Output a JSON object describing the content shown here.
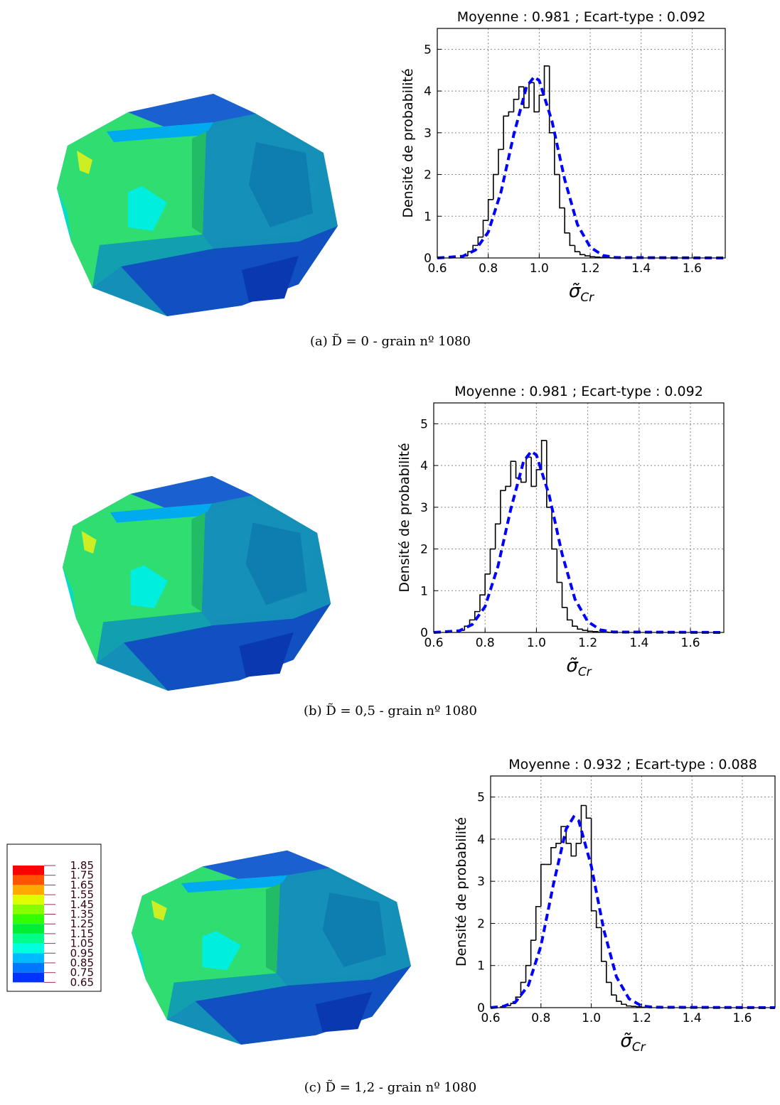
{
  "chart_data": [
    {
      "type": "histogram",
      "title": "Moyenne : 0.981 ; Ecart-type : 0.092",
      "ylabel": "Densité de probabilité",
      "xlabel": "σ̃",
      "xlabel_sub": "Cr",
      "bins": [
        0.7,
        0.72,
        0.74,
        0.76,
        0.78,
        0.8,
        0.82,
        0.84,
        0.86,
        0.88,
        0.9,
        0.92,
        0.94,
        0.96,
        0.98,
        1.0,
        1.02,
        1.04,
        1.06,
        1.08,
        1.1,
        1.12,
        1.14,
        1.16,
        1.18,
        1.2,
        1.22,
        1.24,
        1.26,
        1.28,
        1.3
      ],
      "values": [
        0.05,
        0.15,
        0.3,
        0.5,
        0.9,
        1.4,
        2.0,
        2.6,
        3.4,
        3.5,
        3.8,
        4.1,
        3.6,
        4.2,
        3.5,
        3.9,
        4.6,
        3.0,
        2.0,
        1.2,
        0.6,
        0.3,
        0.15,
        0.08,
        0.05,
        0.03,
        0.02,
        0.01,
        0.01,
        0
      ],
      "color": "#000000",
      "fit": {
        "color": "#0000ff",
        "x": [
          0.6,
          0.7,
          0.75,
          0.8,
          0.85,
          0.9,
          0.95,
          0.98,
          1.0,
          1.05,
          1.1,
          1.15,
          1.2,
          1.25,
          1.3,
          1.73
        ],
        "values": [
          0,
          0.04,
          0.19,
          0.62,
          1.58,
          2.95,
          4.1,
          4.34,
          4.25,
          3.28,
          1.88,
          0.8,
          0.26,
          0.06,
          0.01,
          0
        ]
      },
      "xlim": [
        0.6,
        1.73
      ],
      "ylim": [
        0,
        5.5
      ],
      "xticks": [
        0.6,
        0.8,
        {
          "value": 1,
          "label": "1.0"
        },
        1.2,
        1.4,
        1.6
      ],
      "yticks": [
        0,
        1,
        2,
        3,
        4,
        5
      ],
      "grid": true
    },
    {
      "type": "histogram",
      "title": "Moyenne : 0.981 ; Ecart-type : 0.092",
      "ylabel": "Densité de probabilité",
      "xlabel": "σ̃",
      "xlabel_sub": "Cr",
      "bins": [
        0.7,
        0.72,
        0.74,
        0.76,
        0.78,
        0.8,
        0.82,
        0.84,
        0.86,
        0.88,
        0.9,
        0.92,
        0.94,
        0.96,
        0.98,
        1.0,
        1.02,
        1.04,
        1.06,
        1.08,
        1.1,
        1.12,
        1.14,
        1.16,
        1.18,
        1.2,
        1.22,
        1.24,
        1.26,
        1.28,
        1.3
      ],
      "values": [
        0.05,
        0.15,
        0.3,
        0.5,
        0.9,
        1.4,
        2.0,
        2.6,
        3.4,
        3.5,
        4.1,
        3.7,
        3.6,
        4.2,
        3.5,
        3.9,
        4.6,
        3.0,
        2.0,
        1.2,
        0.6,
        0.3,
        0.15,
        0.08,
        0.05,
        0.03,
        0.02,
        0.01,
        0.01,
        0
      ],
      "color": "#000000",
      "fit": {
        "color": "#0000ff",
        "x": [
          0.6,
          0.7,
          0.75,
          0.8,
          0.85,
          0.9,
          0.95,
          0.98,
          1.0,
          1.05,
          1.1,
          1.15,
          1.2,
          1.25,
          1.3,
          1.73
        ],
        "values": [
          0,
          0.04,
          0.19,
          0.62,
          1.58,
          2.95,
          4.1,
          4.34,
          4.25,
          3.28,
          1.88,
          0.8,
          0.26,
          0.06,
          0.01,
          0
        ]
      },
      "xlim": [
        0.6,
        1.73
      ],
      "ylim": [
        0,
        5.5
      ],
      "xticks": [
        0.6,
        0.8,
        {
          "value": 1,
          "label": "1.0"
        },
        1.2,
        1.4,
        1.6
      ],
      "yticks": [
        0,
        1,
        2,
        3,
        4,
        5
      ],
      "grid": true
    },
    {
      "type": "histogram",
      "title": "Moyenne : 0.932 ; Ecart-type : 0.088",
      "ylabel": "Densité de probabilité",
      "xlabel": "σ̃",
      "xlabel_sub": "Cr",
      "bins": [
        0.64,
        0.66,
        0.68,
        0.7,
        0.72,
        0.74,
        0.76,
        0.78,
        0.8,
        0.82,
        0.84,
        0.86,
        0.88,
        0.9,
        0.92,
        0.94,
        0.96,
        0.98,
        1.0,
        1.02,
        1.04,
        1.06,
        1.08,
        1.1,
        1.12,
        1.14,
        1.16,
        1.18,
        1.2,
        1.22,
        1.24
      ],
      "values": [
        0.02,
        0.05,
        0.1,
        0.25,
        0.6,
        1.0,
        1.6,
        2.4,
        3.4,
        3.4,
        3.8,
        3.9,
        4.3,
        3.9,
        3.6,
        3.9,
        4.8,
        4.5,
        2.3,
        1.9,
        1.1,
        0.6,
        0.3,
        0.15,
        0.08,
        0.04,
        0.03,
        0.02,
        0.01,
        0.01
      ],
      "color": "#000000",
      "fit": {
        "color": "#0000ff",
        "x": [
          0.6,
          0.65,
          0.7,
          0.75,
          0.8,
          0.85,
          0.9,
          0.93,
          0.95,
          1.0,
          1.05,
          1.1,
          1.15,
          1.2,
          1.25,
          1.73
        ],
        "values": [
          0,
          0.03,
          0.14,
          0.53,
          1.47,
          2.94,
          4.24,
          4.53,
          4.44,
          3.36,
          1.84,
          0.73,
          0.21,
          0.04,
          0.01,
          0
        ]
      },
      "xlim": [
        0.6,
        1.73
      ],
      "ylim": [
        0,
        5.5
      ],
      "xticks": [
        0.6,
        0.8,
        {
          "value": 1,
          "label": "1.0"
        },
        1.2,
        1.4,
        1.6
      ],
      "yticks": [
        0,
        1,
        2,
        3,
        4,
        5
      ],
      "grid": true
    }
  ],
  "captions": [
    "(a) D̃ = 0 - grain nº 1080",
    "(b) D̃ = 0,5 - grain nº 1080",
    "(c) D̃ = 1,2 - grain nº 1080"
  ],
  "colorbar": {
    "labels": [
      1.85,
      1.75,
      1.65,
      1.55,
      1.45,
      1.35,
      1.25,
      1.15,
      1.05,
      0.95,
      0.85,
      0.75,
      0.65
    ],
    "colors": [
      "#ff0000",
      "#ff5500",
      "#ffaa00",
      "#ddff00",
      "#88ff00",
      "#33ff00",
      "#00ee33",
      "#00ff88",
      "#00ffdd",
      "#00bbff",
      "#0077ff",
      "#0033ff"
    ]
  }
}
